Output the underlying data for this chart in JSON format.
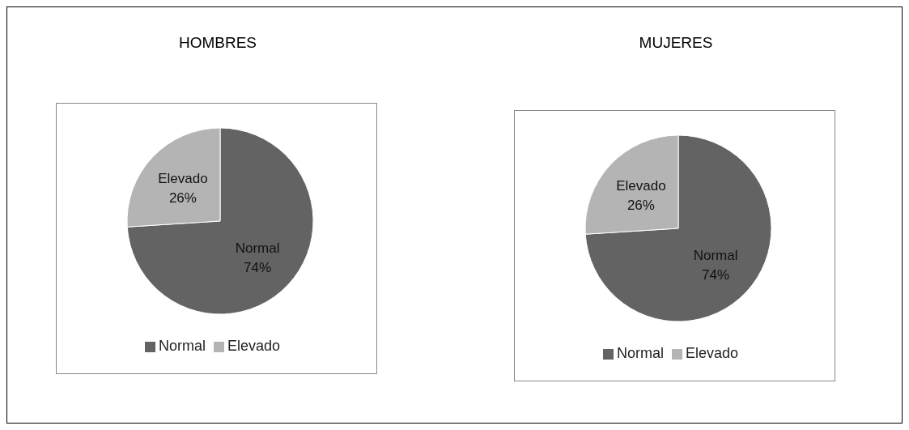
{
  "chart_data": [
    {
      "type": "pie",
      "title": "HOMBRES",
      "categories": [
        "Normal",
        "Elevado"
      ],
      "values": [
        74,
        26
      ],
      "colors": [
        "#636363",
        "#b4b4b4"
      ],
      "value_labels": [
        "74%",
        "26%"
      ],
      "legend": "bottom"
    },
    {
      "type": "pie",
      "title": "MUJERES",
      "categories": [
        "Normal",
        "Elevado"
      ],
      "values": [
        74,
        26
      ],
      "colors": [
        "#636363",
        "#b4b4b4"
      ],
      "value_labels": [
        "74%",
        "26%"
      ],
      "legend": "bottom"
    }
  ]
}
